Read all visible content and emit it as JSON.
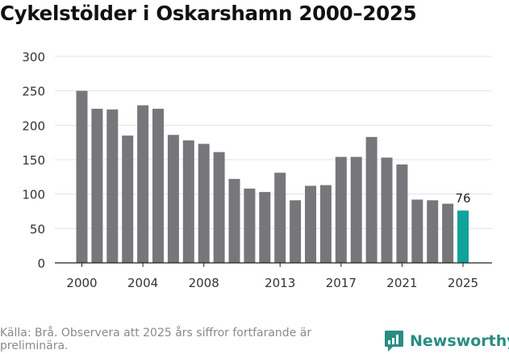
{
  "title": "Cykelstölder i Oskarshamn 2000–2025",
  "footer": "Källa: Brå. Observera att 2025 års siffror fortfarande är preliminära.",
  "brand": {
    "name": "Newsworthy",
    "icon": "newsworthy-logo-icon",
    "color": "#2a8c82"
  },
  "chart_data": {
    "type": "bar",
    "title": "Cykelstölder i Oskarshamn 2000–2025",
    "xlabel": "",
    "ylabel": "",
    "ylim": [
      0,
      300
    ],
    "yticks": [
      0,
      50,
      100,
      150,
      200,
      250,
      300
    ],
    "xticks": [
      "2000",
      "2004",
      "2008",
      "2013",
      "2017",
      "2021",
      "2025"
    ],
    "categories": [
      "2000",
      "2001",
      "2002",
      "2003",
      "2004",
      "2005",
      "2006",
      "2007",
      "2008",
      "2009",
      "2010",
      "2011",
      "2012",
      "2013",
      "2014",
      "2015",
      "2016",
      "2017",
      "2018",
      "2019",
      "2020",
      "2021",
      "2022",
      "2023",
      "2024",
      "2025"
    ],
    "values": [
      250,
      224,
      223,
      185,
      229,
      224,
      186,
      178,
      173,
      161,
      122,
      108,
      103,
      131,
      91,
      112,
      113,
      154,
      154,
      183,
      153,
      143,
      92,
      91,
      86,
      76
    ],
    "grid": true,
    "colors": {
      "bar": "#77767b",
      "highlight": "#11a39a"
    },
    "highlight": {
      "category": "2025",
      "label": "76"
    }
  }
}
